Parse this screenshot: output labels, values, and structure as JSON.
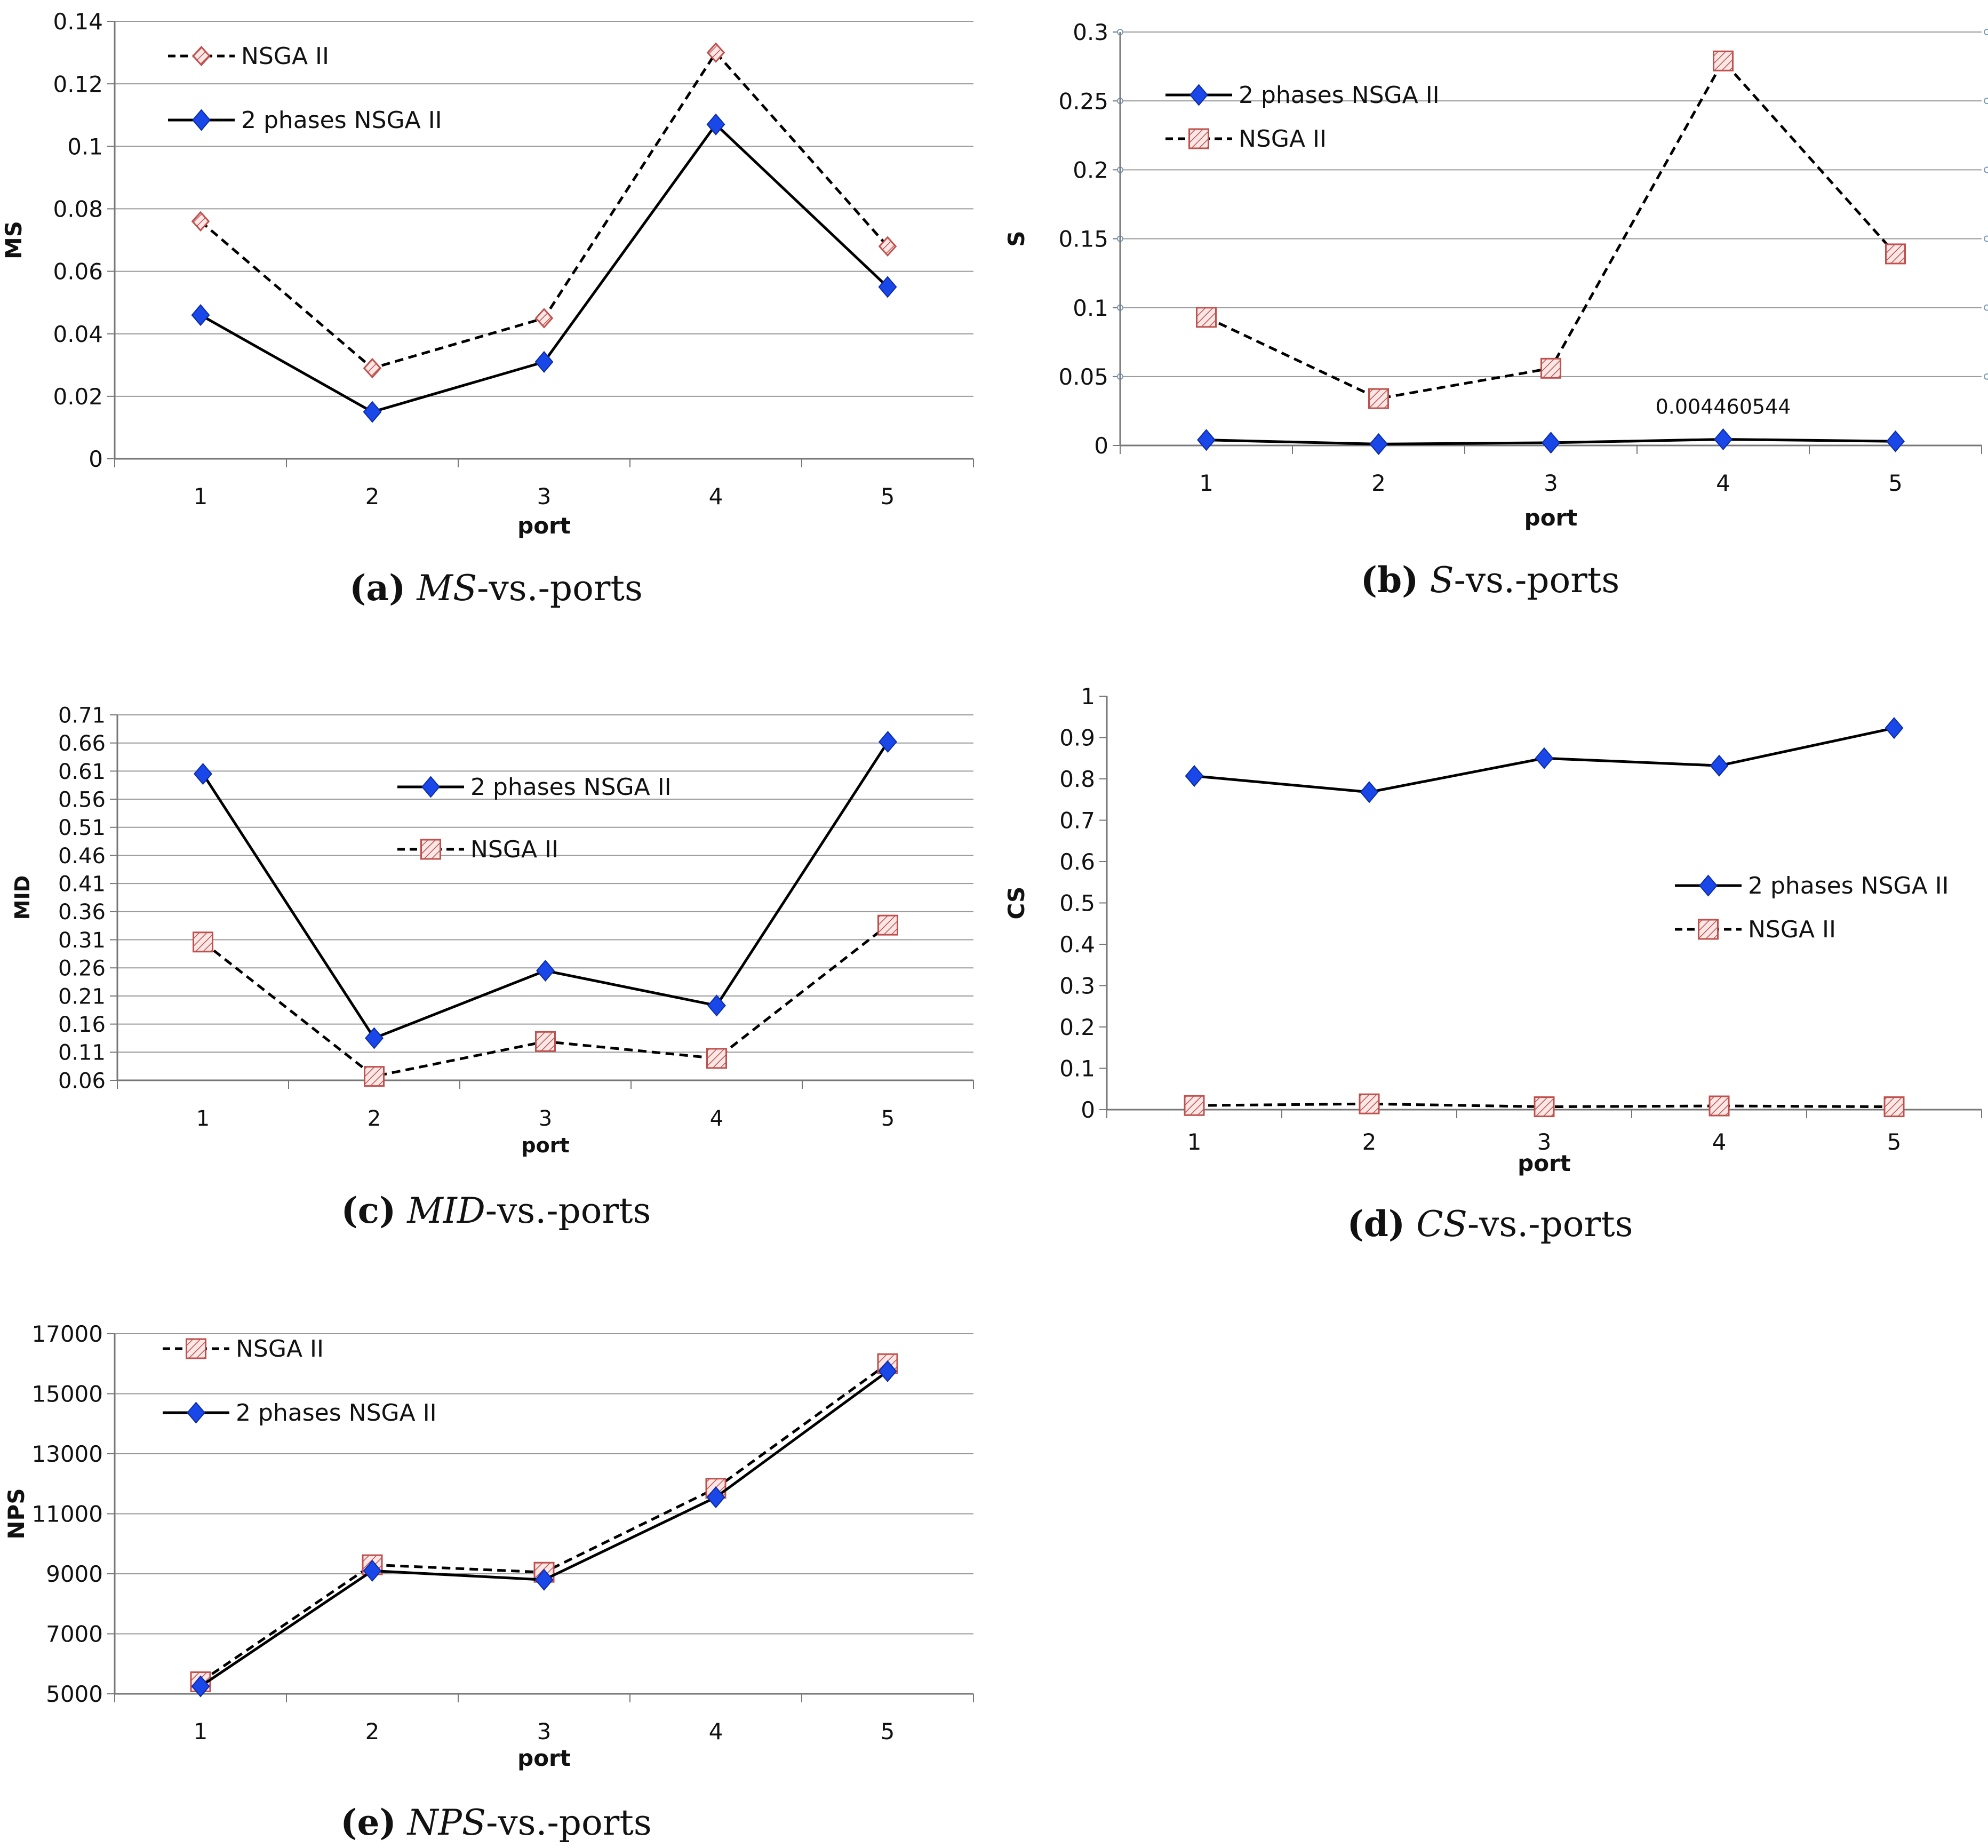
{
  "colors": {
    "nsga_marker_fill": "#f4cdca",
    "nsga_marker_stroke": "#c0504d",
    "two_phase_marker": "#1a48e8",
    "grid": "#9a9a9a",
    "axis": "#777777"
  },
  "chart_data": [
    {
      "id": "a",
      "type": "line",
      "caption": {
        "letter": "(a)",
        "metric": "MS",
        "suffix": "-vs.-ports"
      },
      "xlabel": "port",
      "ylabel": "MS",
      "categories": [
        "1",
        "2",
        "3",
        "4",
        "5"
      ],
      "ylim": [
        0,
        0.14
      ],
      "yticks": [
        "0",
        "0.02",
        "0.04",
        "0.06",
        "0.08",
        "0.1",
        "0.12",
        "0.14"
      ],
      "grid": true,
      "legend_position": "top-left",
      "series": [
        {
          "name": "NSGA II",
          "style": "dashed",
          "marker": "open-diamond",
          "values": [
            0.076,
            0.029,
            0.045,
            0.13,
            0.068
          ]
        },
        {
          "name": "2 phases NSGA II",
          "style": "solid",
          "marker": "diamond",
          "values": [
            0.046,
            0.015,
            0.031,
            0.107,
            0.055
          ]
        }
      ]
    },
    {
      "id": "b",
      "type": "line",
      "caption": {
        "letter": "(b)",
        "metric": "S",
        "suffix": "-vs.-ports"
      },
      "xlabel": "port",
      "ylabel": "S",
      "categories": [
        "1",
        "2",
        "3",
        "4",
        "5"
      ],
      "ylim": [
        0,
        0.3
      ],
      "yticks": [
        "0",
        "0.05",
        "0.1",
        "0.15",
        "0.2",
        "0.25",
        "0.3"
      ],
      "grid": true,
      "legend_position": "top-left",
      "annotation": {
        "text": "0.004460544",
        "category_index": 3,
        "value": 0.004460544
      },
      "series": [
        {
          "name": "2 phases NSGA II",
          "style": "solid",
          "marker": "diamond",
          "values": [
            0.004,
            0.001,
            0.002,
            0.004460544,
            0.003
          ]
        },
        {
          "name": "NSGA II",
          "style": "dashed",
          "marker": "square",
          "values": [
            0.093,
            0.034,
            0.056,
            0.279,
            0.139
          ]
        }
      ]
    },
    {
      "id": "c",
      "type": "line",
      "caption": {
        "letter": "(c)",
        "metric": "MID",
        "suffix": "-vs.-ports"
      },
      "xlabel": "port",
      "ylabel": "MID",
      "categories": [
        "1",
        "2",
        "3",
        "4",
        "5"
      ],
      "ylim": [
        0.06,
        0.71
      ],
      "yticks": [
        "0.06",
        "0.11",
        "0.16",
        "0.21",
        "0.26",
        "0.31",
        "0.36",
        "0.41",
        "0.46",
        "0.51",
        "0.56",
        "0.61",
        "0.66",
        "0.71"
      ],
      "grid": true,
      "legend_position": "top-center",
      "series": [
        {
          "name": "2 phases NSGA II",
          "style": "solid",
          "marker": "diamond",
          "values": [
            0.605,
            0.135,
            0.255,
            0.193,
            0.662
          ]
        },
        {
          "name": "NSGA II",
          "style": "dashed",
          "marker": "square",
          "values": [
            0.306,
            0.067,
            0.129,
            0.099,
            0.336
          ]
        }
      ]
    },
    {
      "id": "d",
      "type": "line",
      "caption": {
        "letter": "(d)",
        "metric": "CS",
        "suffix": "-vs.-ports"
      },
      "xlabel": "port",
      "ylabel": "CS",
      "categories": [
        "1",
        "2",
        "3",
        "4",
        "5"
      ],
      "ylim": [
        0,
        1
      ],
      "yticks": [
        "0",
        "0.1",
        "0.2",
        "0.3",
        "0.4",
        "0.5",
        "0.6",
        "0.7",
        "0.8",
        "0.9",
        "1"
      ],
      "grid": false,
      "legend_position": "center-right",
      "series": [
        {
          "name": "2 phases NSGA II",
          "style": "solid",
          "marker": "diamond",
          "values": [
            0.807,
            0.768,
            0.85,
            0.832,
            0.923
          ]
        },
        {
          "name": "NSGA II",
          "style": "dashed",
          "marker": "square",
          "values": [
            0.01,
            0.014,
            0.007,
            0.009,
            0.007
          ]
        }
      ]
    },
    {
      "id": "e",
      "type": "line",
      "caption": {
        "letter": "(e)",
        "metric": "NPS",
        "suffix": "-vs.-ports"
      },
      "xlabel": "port",
      "ylabel": "NPS",
      "categories": [
        "1",
        "2",
        "3",
        "4",
        "5"
      ],
      "ylim": [
        5000,
        17000
      ],
      "yticks": [
        "5000",
        "7000",
        "9000",
        "11000",
        "13000",
        "15000",
        "17000"
      ],
      "grid": true,
      "legend_position": "top-left",
      "series": [
        {
          "name": "NSGA II",
          "style": "dashed",
          "marker": "square",
          "values": [
            5400,
            9300,
            9050,
            11850,
            16000
          ]
        },
        {
          "name": "2 phases NSGA II",
          "style": "solid",
          "marker": "diamond",
          "values": [
            5250,
            9100,
            8800,
            11550,
            15750
          ]
        }
      ]
    }
  ]
}
